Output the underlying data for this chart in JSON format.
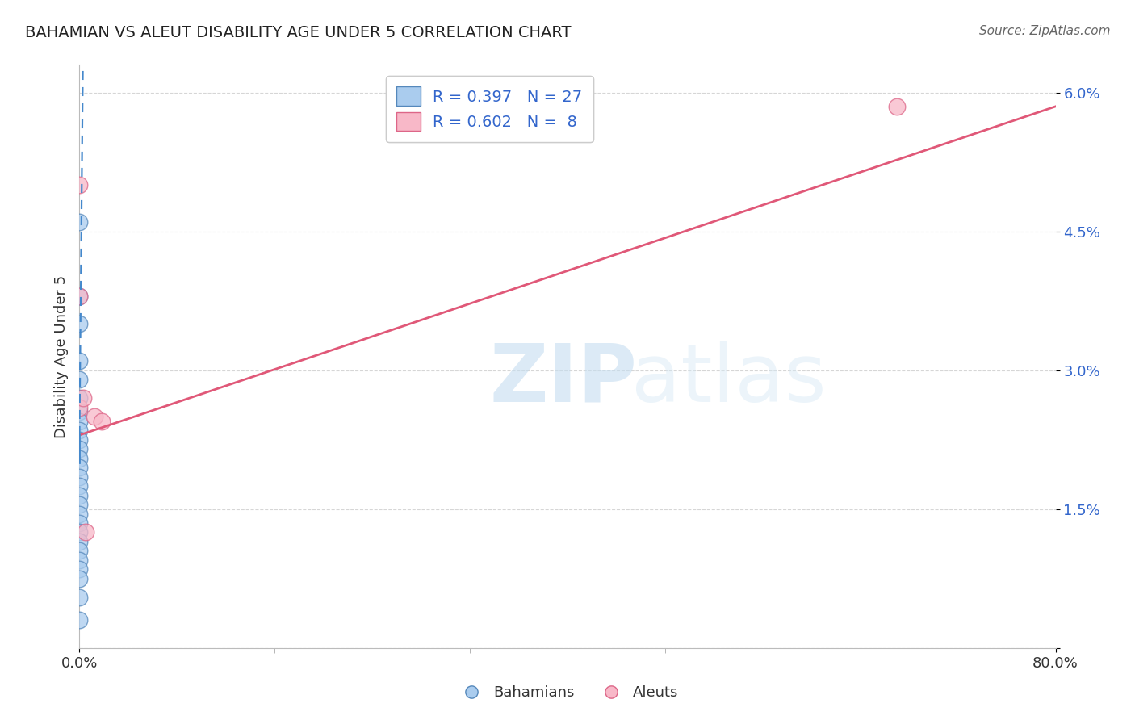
{
  "title": "BAHAMIAN VS ALEUT DISABILITY AGE UNDER 5 CORRELATION CHART",
  "source": "Source: ZipAtlas.com",
  "xlim": [
    0.0,
    80.0
  ],
  "ylim": [
    0.0,
    6.3
  ],
  "bahamian_x": [
    0.0,
    0.0,
    0.0,
    0.0,
    0.0,
    0.0,
    0.0,
    0.0,
    0.0,
    0.0,
    0.0,
    0.0,
    0.0,
    0.0,
    0.0,
    0.0,
    0.0,
    0.0,
    0.0,
    0.0,
    0.0,
    0.0,
    0.0,
    0.0,
    0.0,
    0.0,
    0.0
  ],
  "bahamian_y": [
    4.6,
    3.8,
    3.5,
    3.1,
    2.9,
    2.7,
    2.55,
    2.45,
    2.35,
    2.25,
    2.15,
    2.05,
    1.95,
    1.85,
    1.75,
    1.65,
    1.55,
    1.45,
    1.35,
    1.25,
    1.15,
    1.05,
    0.95,
    0.85,
    0.75,
    0.55,
    0.3
  ],
  "aleut_x": [
    0.0,
    0.0,
    0.0,
    0.3,
    0.5,
    1.2,
    1.8,
    67.0
  ],
  "aleut_y": [
    5.0,
    3.8,
    2.6,
    2.7,
    1.25,
    2.5,
    2.45,
    5.85
  ],
  "bahamian_color": "#aaccee",
  "bahamian_edge_color": "#5588bb",
  "aleut_color": "#f8b8c8",
  "aleut_edge_color": "#dd6688",
  "bahamian_R": 0.397,
  "bahamian_N": 27,
  "aleut_R": 0.602,
  "aleut_N": 8,
  "trend_blue_color": "#4488cc",
  "trend_pink_color": "#e05878",
  "blue_line_x0": 0.0,
  "blue_line_y0": 2.3,
  "blue_line_x1": 0.28,
  "blue_line_y1": 6.3,
  "pink_line_x0": 0.0,
  "pink_line_y0": 2.3,
  "pink_line_x1": 80.0,
  "pink_line_y1": 5.85,
  "watermark_zip": "ZIP",
  "watermark_atlas": "atlas",
  "legend_label_bahamian": "Bahamians",
  "legend_label_aleut": "Aleuts",
  "ylabel": "Disability Age Under 5",
  "ytick_vals": [
    0.0,
    1.5,
    3.0,
    4.5,
    6.0
  ],
  "ytick_labels": [
    "",
    "1.5%",
    "3.0%",
    "4.5%",
    "6.0%"
  ],
  "xtick_vals": [
    0.0,
    80.0
  ],
  "xtick_labels": [
    "0.0%",
    "80.0%"
  ],
  "legend_R_color": "#3366cc",
  "legend_N_color": "#3366cc",
  "ytick_color": "#3366cc"
}
